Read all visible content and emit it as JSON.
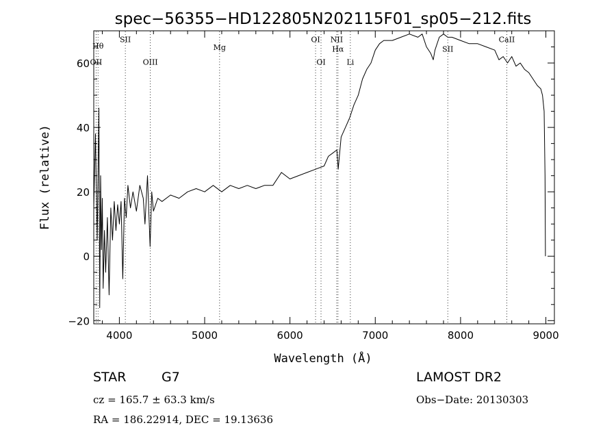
{
  "chart_data": {
    "type": "line",
    "title": "spec−56355−HD122805N202115F01_sp05−212.fits",
    "xlabel": "Wavelength (Å)",
    "ylabel": "Flux (relative)",
    "xlim": [
      3700,
      9100
    ],
    "ylim": [
      -21,
      70
    ],
    "xticks": [
      4000,
      5000,
      6000,
      7000,
      8000,
      9000
    ],
    "xtick_labels": [
      "4000",
      "5000",
      "6000",
      "7000",
      "8000",
      "9000"
    ],
    "yticks": [
      -20,
      0,
      20,
      40,
      60
    ],
    "ytick_labels": [
      "−20",
      "0",
      "20",
      "40",
      "60"
    ],
    "grid": false,
    "series": [
      {
        "points": [
          [
            3700,
            15
          ],
          [
            3720,
            38
          ],
          [
            3740,
            5
          ],
          [
            3760,
            46
          ],
          [
            3770,
            -16
          ],
          [
            3780,
            25
          ],
          [
            3790,
            2
          ],
          [
            3800,
            18
          ],
          [
            3810,
            -10
          ],
          [
            3825,
            8
          ],
          [
            3840,
            -5
          ],
          [
            3860,
            12
          ],
          [
            3880,
            -12
          ],
          [
            3900,
            15
          ],
          [
            3920,
            5
          ],
          [
            3940,
            17
          ],
          [
            3960,
            8
          ],
          [
            3980,
            16
          ],
          [
            4000,
            10
          ],
          [
            4020,
            17
          ],
          [
            4040,
            -7
          ],
          [
            4060,
            18
          ],
          [
            4080,
            12
          ],
          [
            4100,
            22
          ],
          [
            4130,
            15
          ],
          [
            4160,
            20
          ],
          [
            4200,
            14
          ],
          [
            4240,
            22
          ],
          [
            4280,
            18
          ],
          [
            4300,
            10
          ],
          [
            4330,
            25
          ],
          [
            4360,
            3
          ],
          [
            4380,
            20
          ],
          [
            4400,
            14
          ],
          [
            4450,
            18
          ],
          [
            4500,
            17
          ],
          [
            4600,
            19
          ],
          [
            4700,
            18
          ],
          [
            4800,
            20
          ],
          [
            4900,
            21
          ],
          [
            5000,
            20
          ],
          [
            5100,
            22
          ],
          [
            5200,
            20
          ],
          [
            5300,
            22
          ],
          [
            5400,
            21
          ],
          [
            5500,
            22
          ],
          [
            5600,
            21
          ],
          [
            5700,
            22
          ],
          [
            5800,
            22
          ],
          [
            5900,
            26
          ],
          [
            6000,
            24
          ],
          [
            6100,
            25
          ],
          [
            6200,
            26
          ],
          [
            6300,
            27
          ],
          [
            6400,
            28
          ],
          [
            6450,
            31
          ],
          [
            6500,
            32
          ],
          [
            6550,
            33
          ],
          [
            6565,
            27
          ],
          [
            6600,
            37
          ],
          [
            6650,
            40
          ],
          [
            6700,
            43
          ],
          [
            6750,
            47
          ],
          [
            6800,
            50
          ],
          [
            6850,
            55
          ],
          [
            6900,
            58
          ],
          [
            6950,
            60
          ],
          [
            7000,
            64
          ],
          [
            7050,
            66
          ],
          [
            7100,
            67
          ],
          [
            7200,
            67
          ],
          [
            7300,
            68
          ],
          [
            7400,
            69
          ],
          [
            7500,
            68
          ],
          [
            7550,
            69
          ],
          [
            7600,
            65
          ],
          [
            7650,
            63
          ],
          [
            7680,
            61
          ],
          [
            7700,
            64
          ],
          [
            7750,
            68
          ],
          [
            7800,
            69
          ],
          [
            7850,
            68
          ],
          [
            7900,
            68
          ],
          [
            8000,
            67
          ],
          [
            8100,
            66
          ],
          [
            8200,
            66
          ],
          [
            8300,
            65
          ],
          [
            8400,
            64
          ],
          [
            8450,
            61
          ],
          [
            8500,
            62
          ],
          [
            8550,
            60
          ],
          [
            8600,
            62
          ],
          [
            8650,
            59
          ],
          [
            8700,
            60
          ],
          [
            8750,
            58
          ],
          [
            8800,
            57
          ],
          [
            8850,
            55
          ],
          [
            8900,
            53
          ],
          [
            8940,
            52
          ],
          [
            8960,
            50
          ],
          [
            8980,
            45
          ],
          [
            8990,
            25
          ],
          [
            8995,
            0
          ]
        ]
      }
    ],
    "lines": [
      {
        "x": 3727,
        "label": "OII",
        "label_y": 59.5
      },
      {
        "x": 3750,
        "label": "Hθ",
        "label_y": 64.5
      },
      {
        "x": 4070,
        "label": "SII",
        "label_y": 66.5
      },
      {
        "x": 4363,
        "label": "OIII",
        "label_y": 59.5
      },
      {
        "x": 5175,
        "label": "Mg",
        "label_y": 64
      },
      {
        "x": 6300,
        "label": "OI",
        "label_y": 66.5
      },
      {
        "x": 6364,
        "label": "OI",
        "label_y": 59.5
      },
      {
        "x": 6548,
        "label": "NII",
        "label_y": 66.5
      },
      {
        "x": 6563,
        "label": "Hα",
        "label_y": 63.5
      },
      {
        "x": 6708,
        "label": "Li",
        "label_y": 59.5
      },
      {
        "x": 7850,
        "label": "SII",
        "label_y": 63.5
      },
      {
        "x": 8542,
        "label": "CaII",
        "label_y": 66.5
      }
    ]
  },
  "info": {
    "class_label": "STAR",
    "subclass": "G7",
    "survey": "LAMOST DR2",
    "cz": "cz = 165.7 ± 63.3 km/s",
    "obs_date": "Obs−Date: 20130303",
    "coords": "RA = 186.22914, DEC =  19.13636"
  }
}
